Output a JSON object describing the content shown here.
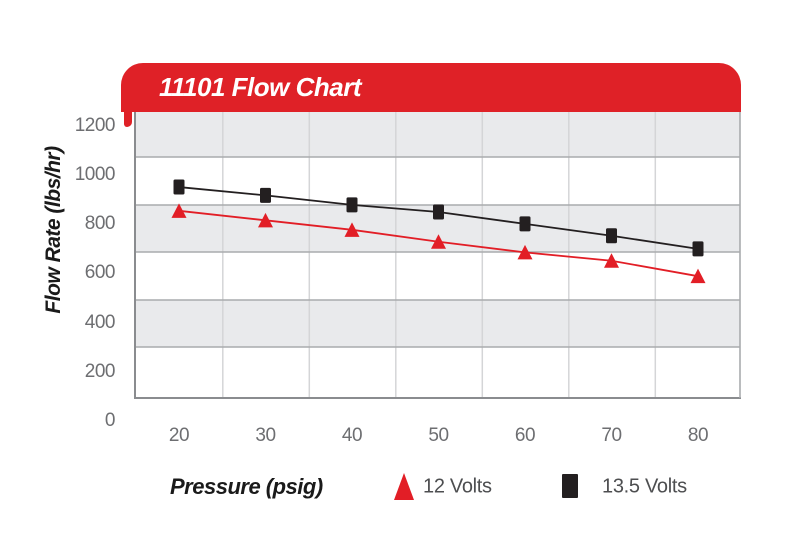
{
  "header": {
    "title": "11101 Flow Chart"
  },
  "colors": {
    "accent_red": "#DF2127",
    "series_red": "#E21E26",
    "series_black": "#231F20",
    "band_gray": "#E9EAEC",
    "grid_horizontal": "#A9ABAD",
    "grid_vertical": "#D4D5D7",
    "axis_line": "#8A8C8F",
    "tick_text": "#6D6E71",
    "legend_text": "#4D4E50",
    "title_text": "#FFFFFF"
  },
  "chart_data": {
    "type": "line",
    "title": "11101 Flow Chart",
    "xlabel": "Pressure (psig)",
    "ylabel": "Flow Rate (lbs/hr)",
    "x": [
      20,
      30,
      40,
      50,
      60,
      70,
      80
    ],
    "x_tick_labels": [
      "20",
      "30",
      "40",
      "50",
      "60",
      "70",
      "80"
    ],
    "y_tick_values": [
      1200,
      1000,
      800,
      600,
      400,
      200,
      0
    ],
    "y_tick_labels": [
      "1200",
      "1000",
      "800",
      "600",
      "400",
      "200",
      "0"
    ],
    "xlim": [
      15,
      85
    ],
    "ylim": [
      0,
      1300
    ],
    "grid": "alternating gray/white horizontal bands with gridlines offset midway between ticks; light vertical gridlines midway between x ticks",
    "legend_position": "bottom",
    "series": [
      {
        "name": "12 Volts",
        "marker": "triangle",
        "color": "#E21E26",
        "values": [
          875,
          835,
          795,
          745,
          700,
          665,
          600
        ]
      },
      {
        "name": "13.5 Volts",
        "marker": "square",
        "color": "#231F20",
        "values": [
          975,
          940,
          900,
          870,
          820,
          770,
          715
        ]
      }
    ]
  },
  "legend": {
    "items": [
      {
        "label": "12 Volts",
        "marker": "triangle"
      },
      {
        "label": "13.5 Volts",
        "marker": "square"
      }
    ]
  }
}
